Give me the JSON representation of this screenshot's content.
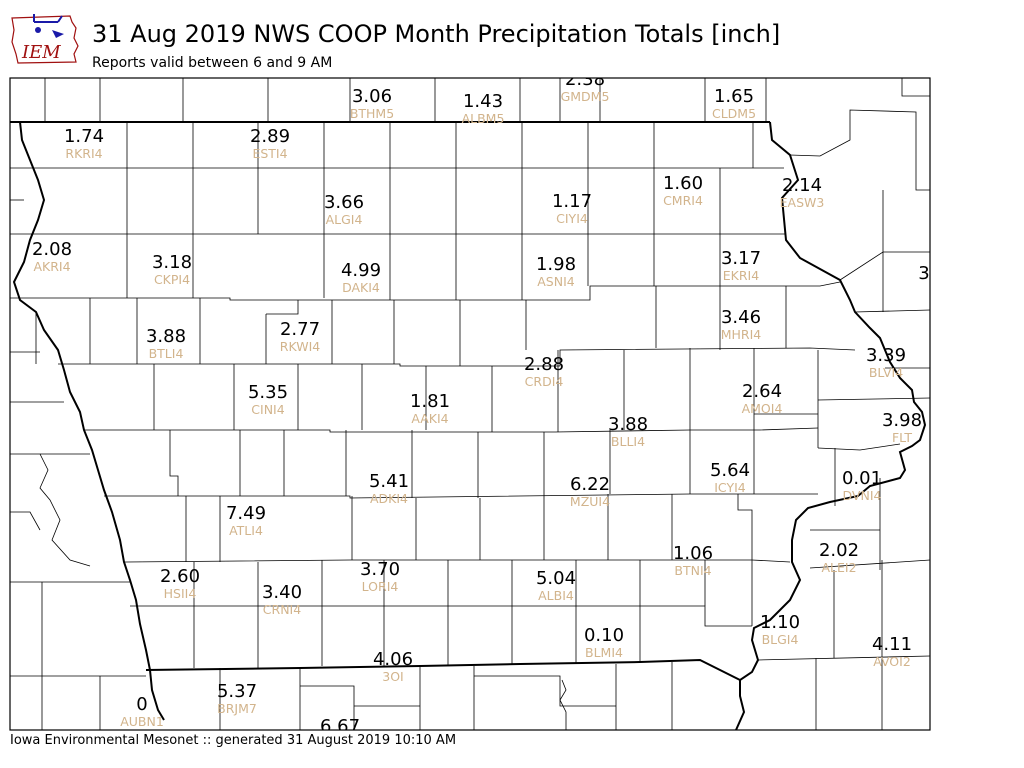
{
  "header": {
    "title": "31 Aug 2019 NWS COOP Month Precipitation Totals [inch]",
    "subtitle": "Reports valid between 6 and 9 AM"
  },
  "logo": {
    "text": "IEM"
  },
  "footer": {
    "text": "Iowa Environmental Mesonet :: generated 31 August 2019 10:10 AM"
  },
  "colors": {
    "value_text": "#000000",
    "station_text": "#d2b48c",
    "border": "#000000",
    "logo_red": "#a01010",
    "logo_blue": "#1a1aa8"
  },
  "stations": [
    {
      "value": "3.06",
      "id": "BTHM5"
    },
    {
      "value": "1.43",
      "id": "ALBM5"
    },
    {
      "value": "2.38",
      "id": "GMDM5"
    },
    {
      "value": "1.65",
      "id": "CLDM5"
    },
    {
      "value": "1.74",
      "id": "RKRI4"
    },
    {
      "value": "2.89",
      "id": "ESTI4"
    },
    {
      "value": "3.66",
      "id": "ALGI4"
    },
    {
      "value": "1.17",
      "id": "CIYI4"
    },
    {
      "value": "1.60",
      "id": "CMRI4"
    },
    {
      "value": "2.14",
      "id": "EASW3"
    },
    {
      "value": "2.08",
      "id": "AKRI4"
    },
    {
      "value": "3.18",
      "id": "CKPI4"
    },
    {
      "value": "4.99",
      "id": "DAKI4"
    },
    {
      "value": "1.98",
      "id": "ASNI4"
    },
    {
      "value": "3.17",
      "id": "EKRI4"
    },
    {
      "value": "3",
      "id": ""
    },
    {
      "value": "3.88",
      "id": "BTLI4"
    },
    {
      "value": "2.77",
      "id": "RKWI4"
    },
    {
      "value": "3.46",
      "id": "MHRI4"
    },
    {
      "value": "2.88",
      "id": "CRDI4"
    },
    {
      "value": "3.39",
      "id": "BLVI4"
    },
    {
      "value": "5.35",
      "id": "CINI4"
    },
    {
      "value": "1.81",
      "id": "AAKI4"
    },
    {
      "value": "2.64",
      "id": "AMOI4"
    },
    {
      "value": "3.88",
      "id": "BLLI4"
    },
    {
      "value": "3.98",
      "id": "FLT"
    },
    {
      "value": "5.41",
      "id": "ADKI4"
    },
    {
      "value": "6.22",
      "id": "MZUI4"
    },
    {
      "value": "5.64",
      "id": "ICYI4"
    },
    {
      "value": "0.01",
      "id": "DVNI4"
    },
    {
      "value": "7.49",
      "id": "ATLI4"
    },
    {
      "value": "1.06",
      "id": "BTNI4"
    },
    {
      "value": "2.02",
      "id": "ALEI2"
    },
    {
      "value": "2.60",
      "id": "HSII4"
    },
    {
      "value": "3.40",
      "id": "CRNI4"
    },
    {
      "value": "3.70",
      "id": "LORI4"
    },
    {
      "value": "5.04",
      "id": "ALBI4"
    },
    {
      "value": "0.10",
      "id": "BLMI4"
    },
    {
      "value": "1.10",
      "id": "BLGI4"
    },
    {
      "value": "4.11",
      "id": "AVOI2"
    },
    {
      "value": "4.06",
      "id": "3OI"
    },
    {
      "value": "0",
      "id": "AUBN1"
    },
    {
      "value": "5.37",
      "id": "BRJM7"
    },
    {
      "value": "6.67",
      "id": ""
    }
  ]
}
